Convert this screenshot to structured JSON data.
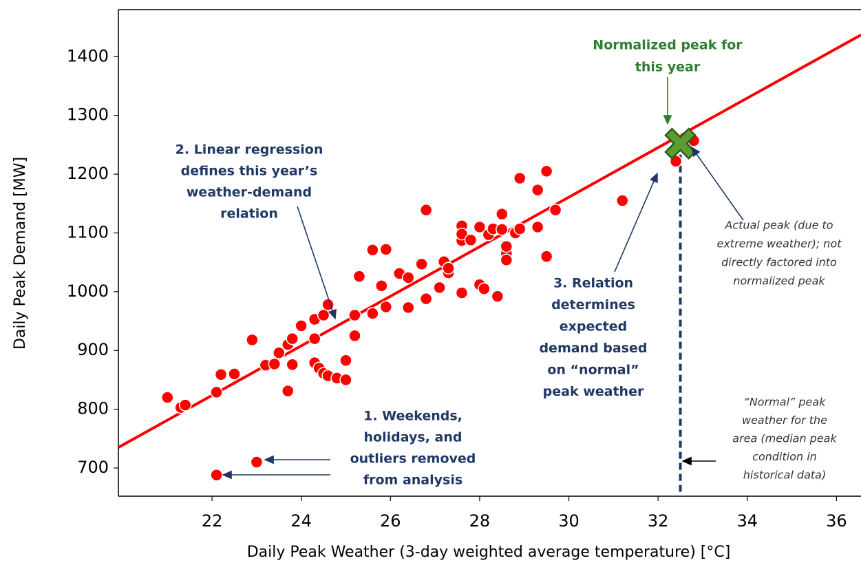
{
  "chart_data": {
    "type": "scatter",
    "x_label": "Daily Peak Weather (3-day weighted average temperature) [°C]",
    "y_label": "Daily Peak Demand [MW]",
    "xlim": [
      19.9,
      36.55
    ],
    "ylim": [
      652,
      1480
    ],
    "xticks": [
      22,
      24,
      26,
      28,
      30,
      32,
      34,
      36
    ],
    "yticks": [
      700,
      800,
      900,
      1000,
      1100,
      1200,
      1300,
      1400
    ],
    "points": {
      "color": "#ff0000",
      "x": [
        21.0,
        21.3,
        21.4,
        22.1,
        22.2,
        22.5,
        22.9,
        23.0,
        22.1,
        23.2,
        23.4,
        23.5,
        23.7,
        23.7,
        23.8,
        23.8,
        24.0,
        24.3,
        24.3,
        24.3,
        24.4,
        24.5,
        24.5,
        24.6,
        24.6,
        24.8,
        25.0,
        25.0,
        25.2,
        25.2,
        25.3,
        25.6,
        25.6,
        25.8,
        25.9,
        25.9,
        26.2,
        26.4,
        26.4,
        26.7,
        26.8,
        26.8,
        27.1,
        27.2,
        27.3,
        27.3,
        27.6,
        27.6,
        27.6,
        27.6,
        27.8,
        28.0,
        28.0,
        28.1,
        28.2,
        28.3,
        28.4,
        28.5,
        28.5,
        28.6,
        28.6,
        28.6,
        28.8,
        28.9,
        28.9,
        29.3,
        29.3,
        29.5,
        29.5,
        29.7,
        31.2,
        32.4,
        32.6,
        32.8
      ],
      "values": [
        820,
        803,
        807,
        829,
        859,
        860,
        918,
        710,
        688,
        875,
        877,
        896,
        831,
        910,
        920,
        876,
        942,
        920,
        879,
        953,
        870,
        861,
        960,
        978,
        857,
        853,
        883,
        850,
        960,
        925,
        1026,
        963,
        1071,
        1010,
        1072,
        974,
        1031,
        1024,
        973,
        1047,
        988,
        1139,
        1007,
        1051,
        1032,
        1040,
        998,
        1087,
        1112,
        1098,
        1088,
        1110,
        1012,
        1005,
        1097,
        1107,
        992,
        1132,
        1106,
        1065,
        1077,
        1054,
        1100,
        1193,
        1107,
        1173,
        1110,
        1205,
        1060,
        1139,
        1155,
        1222,
        1262,
        1257
      ]
    },
    "fit": {
      "color": "#ff0000",
      "x": [
        19.9,
        36.55
      ],
      "values": [
        735,
        1437
      ]
    },
    "peak": {
      "color": "#5a9e32",
      "x": [
        32.5
      ],
      "values": [
        1252
      ]
    },
    "annotations": [
      {
        "lines": [
          "Normalized peak for",
          "this year"
        ],
        "color": "#2e7d32"
      },
      {
        "lines": [
          "2. Linear regression",
          "defines this year’s",
          "weather-demand",
          "relation"
        ],
        "color": "#1f3864"
      },
      {
        "lines": [
          "3. Relation",
          "determines",
          "expected",
          "demand based",
          "on “normal”",
          "peak weather"
        ],
        "color": "#1f3864"
      },
      {
        "lines": [
          "1. Weekends,",
          "holidays, and",
          "outliers removed",
          "from analysis"
        ],
        "color": "#1f3864"
      },
      {
        "lines": [
          "Actual peak (due to",
          "extreme weather); not",
          "directly factored into",
          "normalized peak"
        ],
        "color": "#333333",
        "italic": true
      },
      {
        "lines": [
          "“Normal” peak",
          "weather for the",
          "area (median peak",
          "condition in",
          "historical data)"
        ],
        "color": "#333333",
        "italic": true
      }
    ]
  }
}
